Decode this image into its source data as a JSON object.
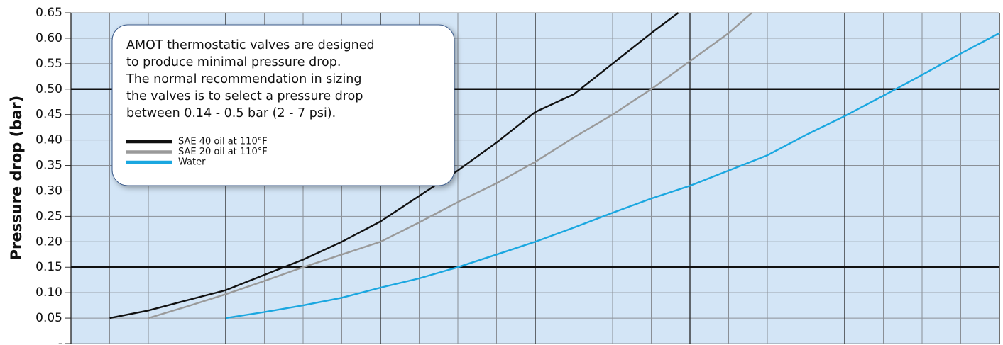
{
  "chart_data": {
    "type": "line",
    "ylabel": "Pressure drop (bar)",
    "ylim": [
      0,
      0.65
    ],
    "yticks": [
      {
        "value": 0,
        "label": "-"
      },
      0.05,
      {
        "value": 0.1,
        "label": "0.10"
      },
      0.15,
      {
        "value": 0.2,
        "label": "0.20"
      },
      0.25,
      {
        "value": 0.3,
        "label": "0.30"
      },
      0.35,
      {
        "value": 0.4,
        "label": "0.40"
      },
      0.45,
      {
        "value": 0.5,
        "label": "0.50"
      },
      0.55,
      {
        "value": 0.6,
        "label": "0.60"
      },
      0.65
    ],
    "xlim": [
      0,
      24
    ],
    "xticks": [
      0,
      1,
      2,
      3,
      4,
      5,
      6,
      7,
      8,
      9,
      10,
      11,
      12,
      13,
      14,
      15,
      16,
      17,
      18,
      19,
      20,
      21,
      22,
      23,
      24
    ],
    "xticks_major": [
      0,
      4,
      8,
      12,
      16,
      20,
      24
    ],
    "reference_lines": [
      0.15,
      0.5
    ],
    "grid": true,
    "annotation_lines": [
      "AMOT thermostatic valves are designed",
      "to produce minimal pressure drop.",
      "The normal recommendation in sizing",
      "the valves is to select a pressure drop",
      "between 0.14 - 0.5 bar (2 - 7 psi)."
    ],
    "legend": "inside-annotation",
    "series": [
      {
        "name": "SAE 40 oil at 110°F",
        "color": "#111111",
        "x": [
          1,
          2,
          3,
          4,
          5,
          6,
          7,
          8,
          9,
          10,
          11,
          12,
          13,
          14,
          15,
          15.7
        ],
        "values": [
          0.05,
          0.065,
          0.085,
          0.105,
          0.135,
          0.165,
          0.2,
          0.24,
          0.29,
          0.34,
          0.395,
          0.455,
          0.49,
          0.55,
          0.61,
          0.65
        ]
      },
      {
        "name": "SAE 20 oil at 110°F",
        "color": "#9a9a9a",
        "x": [
          2,
          3,
          4,
          5,
          6,
          7,
          8,
          9,
          10,
          11,
          12,
          13,
          14,
          15,
          16,
          17,
          17.6
        ],
        "values": [
          0.05,
          0.073,
          0.097,
          0.123,
          0.15,
          0.175,
          0.2,
          0.238,
          0.278,
          0.315,
          0.357,
          0.405,
          0.45,
          0.5,
          0.555,
          0.61,
          0.65
        ]
      },
      {
        "name": "Water",
        "color": "#1aa7e0",
        "x": [
          4,
          5,
          6,
          7,
          8,
          9,
          10,
          11,
          12,
          13,
          14,
          15,
          16,
          17,
          18,
          19,
          20,
          21,
          22,
          23,
          24
        ],
        "values": [
          0.05,
          0.062,
          0.075,
          0.09,
          0.11,
          0.128,
          0.15,
          0.175,
          0.2,
          0.228,
          0.257,
          0.285,
          0.31,
          0.34,
          0.37,
          0.41,
          0.447,
          0.487,
          0.528,
          0.57,
          0.61
        ]
      }
    ]
  }
}
